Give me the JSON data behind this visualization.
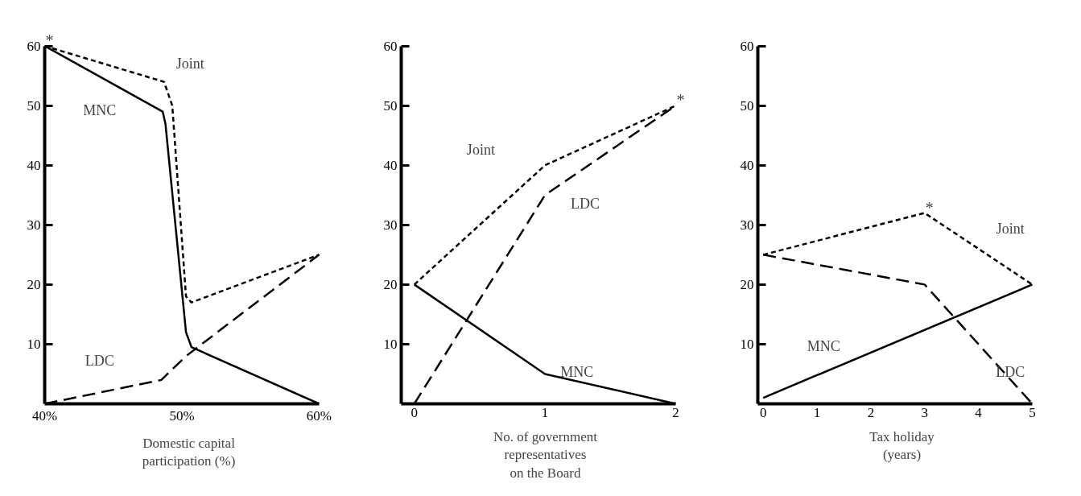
{
  "chart_data": [
    {
      "type": "line",
      "xlabel": "Domestic capital\nparticipation (%)",
      "xlim": [
        40,
        60
      ],
      "ylim": [
        0,
        60
      ],
      "xticks": [
        {
          "value": 40,
          "label": "40%"
        },
        {
          "value": 50,
          "label": "50%"
        },
        {
          "value": 60,
          "label": "60%"
        }
      ],
      "yticks": [
        10,
        20,
        30,
        40,
        50,
        60
      ],
      "grid": false,
      "marker": "none",
      "series": [
        {
          "name": "Joint",
          "color": "#000000",
          "line_style": "dotted",
          "x": [
            40,
            48.7,
            49.3,
            50.3,
            50.7,
            60
          ],
          "values": [
            60,
            54,
            50,
            18,
            17,
            25
          ]
        },
        {
          "name": "MNC",
          "color": "#000000",
          "line_style": "solid",
          "x": [
            40,
            48.6,
            48.8,
            50.3,
            50.7,
            60
          ],
          "values": [
            60,
            49,
            47,
            12,
            9.5,
            0
          ]
        },
        {
          "name": "LDC",
          "color": "#000000",
          "line_style": "dashed",
          "x": [
            40,
            48.5,
            50.3,
            60
          ],
          "values": [
            0,
            4,
            8,
            25
          ]
        }
      ],
      "annotations": [
        {
          "text": "*",
          "x": 40,
          "y": 60
        }
      ]
    },
    {
      "type": "line",
      "xlabel": "No. of government\nrepresentatives\non the Board",
      "xlim": [
        -0.1,
        2
      ],
      "ylim": [
        0,
        60
      ],
      "xticks": [
        0,
        1,
        2
      ],
      "yticks": [
        10,
        20,
        30,
        40,
        50,
        60
      ],
      "grid": false,
      "marker": "none",
      "series": [
        {
          "name": "Joint",
          "color": "#000000",
          "line_style": "dotted",
          "x": [
            0,
            1,
            2
          ],
          "values": [
            20,
            40,
            50
          ]
        },
        {
          "name": "LDC",
          "color": "#000000",
          "line_style": "dashed",
          "x": [
            0,
            1,
            2
          ],
          "values": [
            0,
            35,
            50
          ]
        },
        {
          "name": "MNC",
          "color": "#000000",
          "line_style": "solid",
          "x": [
            0,
            1,
            2
          ],
          "values": [
            20,
            5,
            0
          ]
        }
      ],
      "annotations": [
        {
          "text": "*",
          "x": 2,
          "y": 50
        }
      ]
    },
    {
      "type": "line",
      "xlabel": "Tax holiday\n(years)",
      "xlim": [
        -0.1,
        5
      ],
      "ylim": [
        0,
        60
      ],
      "xticks": [
        0,
        1,
        2,
        3,
        4,
        5
      ],
      "yticks": [
        10,
        20,
        30,
        40,
        50,
        60
      ],
      "grid": false,
      "marker": "none",
      "series": [
        {
          "name": "Joint",
          "color": "#000000",
          "line_style": "dotted",
          "x": [
            0,
            3,
            5
          ],
          "values": [
            25,
            32,
            20
          ]
        },
        {
          "name": "LDC",
          "color": "#000000",
          "line_style": "dashed",
          "x": [
            0,
            3,
            5
          ],
          "values": [
            25,
            20,
            0
          ]
        },
        {
          "name": "MNC",
          "color": "#000000",
          "line_style": "solid",
          "x": [
            0,
            5
          ],
          "values": [
            1,
            20
          ]
        }
      ],
      "annotations": [
        {
          "text": "*",
          "x": 3,
          "y": 32
        }
      ]
    }
  ]
}
